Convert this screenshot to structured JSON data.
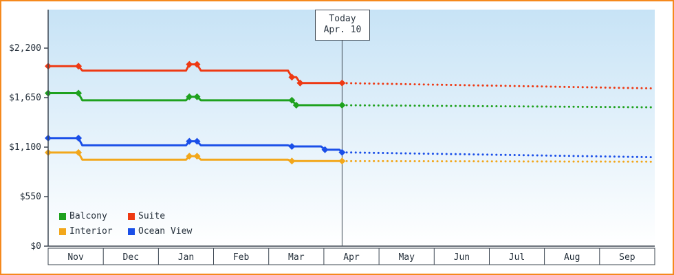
{
  "chart_data": {
    "type": "line",
    "x_months": [
      "Nov",
      "Dec",
      "Jan",
      "Feb",
      "Mar",
      "Apr",
      "May",
      "Jun",
      "Jul",
      "Aug",
      "Sep"
    ],
    "y_ticks": [
      {
        "value": 0,
        "label": "$0"
      },
      {
        "value": 550,
        "label": "$550"
      },
      {
        "value": 1100,
        "label": "$1,100"
      },
      {
        "value": 1650,
        "label": "$1,650"
      },
      {
        "value": 2200,
        "label": "$2,200"
      }
    ],
    "ylim": [
      0,
      2200
    ],
    "xlim_months": [
      0,
      11
    ],
    "grid": false,
    "legend_position": "bottom-left inside plot",
    "today": {
      "label": "Today",
      "date": "Apr. 10",
      "month_index": 5.33
    },
    "series": [
      {
        "name": "Balcony",
        "color": "#1ea11e",
        "solid": [
          [
            0,
            1700
          ],
          [
            0.55,
            1700
          ],
          [
            0.62,
            1620
          ],
          [
            2.5,
            1620
          ],
          [
            2.56,
            1660
          ],
          [
            2.7,
            1660
          ],
          [
            2.77,
            1620
          ],
          [
            4.35,
            1620
          ],
          [
            4.42,
            1620
          ],
          [
            4.5,
            1566
          ],
          [
            5.33,
            1566
          ]
        ],
        "markers": [
          [
            0,
            1700
          ],
          [
            0.55,
            1700
          ],
          [
            2.56,
            1660
          ],
          [
            2.7,
            1660
          ],
          [
            4.42,
            1620
          ],
          [
            4.5,
            1566
          ],
          [
            5.33,
            1566
          ]
        ],
        "dotted": [
          [
            5.33,
            1566
          ],
          [
            11,
            1542
          ]
        ]
      },
      {
        "name": "Suite",
        "color": "#ee3913",
        "solid": [
          [
            0,
            2000
          ],
          [
            0.55,
            2000
          ],
          [
            0.62,
            1950
          ],
          [
            2.5,
            1950
          ],
          [
            2.56,
            2020
          ],
          [
            2.7,
            2020
          ],
          [
            2.77,
            1950
          ],
          [
            4.35,
            1950
          ],
          [
            4.42,
            1878
          ],
          [
            4.5,
            1878
          ],
          [
            4.57,
            1812
          ],
          [
            5.33,
            1812
          ]
        ],
        "markers": [
          [
            0,
            2000
          ],
          [
            0.55,
            2000
          ],
          [
            2.56,
            2020
          ],
          [
            2.7,
            2020
          ],
          [
            4.42,
            1878
          ],
          [
            4.57,
            1812
          ],
          [
            5.33,
            1812
          ]
        ],
        "dotted": [
          [
            5.33,
            1812
          ],
          [
            11,
            1752
          ]
        ]
      },
      {
        "name": "Interior",
        "color": "#f2a71b",
        "solid": [
          [
            0,
            1040
          ],
          [
            0.55,
            1040
          ],
          [
            0.62,
            960
          ],
          [
            2.5,
            960
          ],
          [
            2.56,
            1000
          ],
          [
            2.7,
            1000
          ],
          [
            2.77,
            960
          ],
          [
            4.35,
            960
          ],
          [
            4.42,
            945
          ],
          [
            5.33,
            945
          ]
        ],
        "markers": [
          [
            0,
            1040
          ],
          [
            0.55,
            1040
          ],
          [
            2.56,
            1000
          ],
          [
            2.7,
            1000
          ],
          [
            4.42,
            945
          ],
          [
            5.33,
            945
          ]
        ],
        "dotted": [
          [
            5.33,
            945
          ],
          [
            11,
            938
          ]
        ]
      },
      {
        "name": "Ocean View",
        "color": "#1a4fe8",
        "solid": [
          [
            0,
            1200
          ],
          [
            0.55,
            1200
          ],
          [
            0.62,
            1120
          ],
          [
            2.5,
            1120
          ],
          [
            2.56,
            1165
          ],
          [
            2.7,
            1165
          ],
          [
            2.77,
            1120
          ],
          [
            4.35,
            1120
          ],
          [
            4.42,
            1108
          ],
          [
            4.95,
            1108
          ],
          [
            5.02,
            1072
          ],
          [
            5.28,
            1072
          ],
          [
            5.33,
            1042
          ]
        ],
        "markers": [
          [
            0,
            1200
          ],
          [
            0.55,
            1200
          ],
          [
            2.56,
            1165
          ],
          [
            2.7,
            1165
          ],
          [
            4.42,
            1108
          ],
          [
            5.02,
            1072
          ],
          [
            5.33,
            1042
          ]
        ],
        "dotted": [
          [
            5.33,
            1042
          ],
          [
            11,
            988
          ]
        ]
      }
    ],
    "colors": {
      "frame_border": "#f5891d",
      "plot_bg_top": "#c7e3f6",
      "plot_bg_bottom": "#ffffff",
      "axis": "#3d4752",
      "text": "#26313c"
    }
  }
}
